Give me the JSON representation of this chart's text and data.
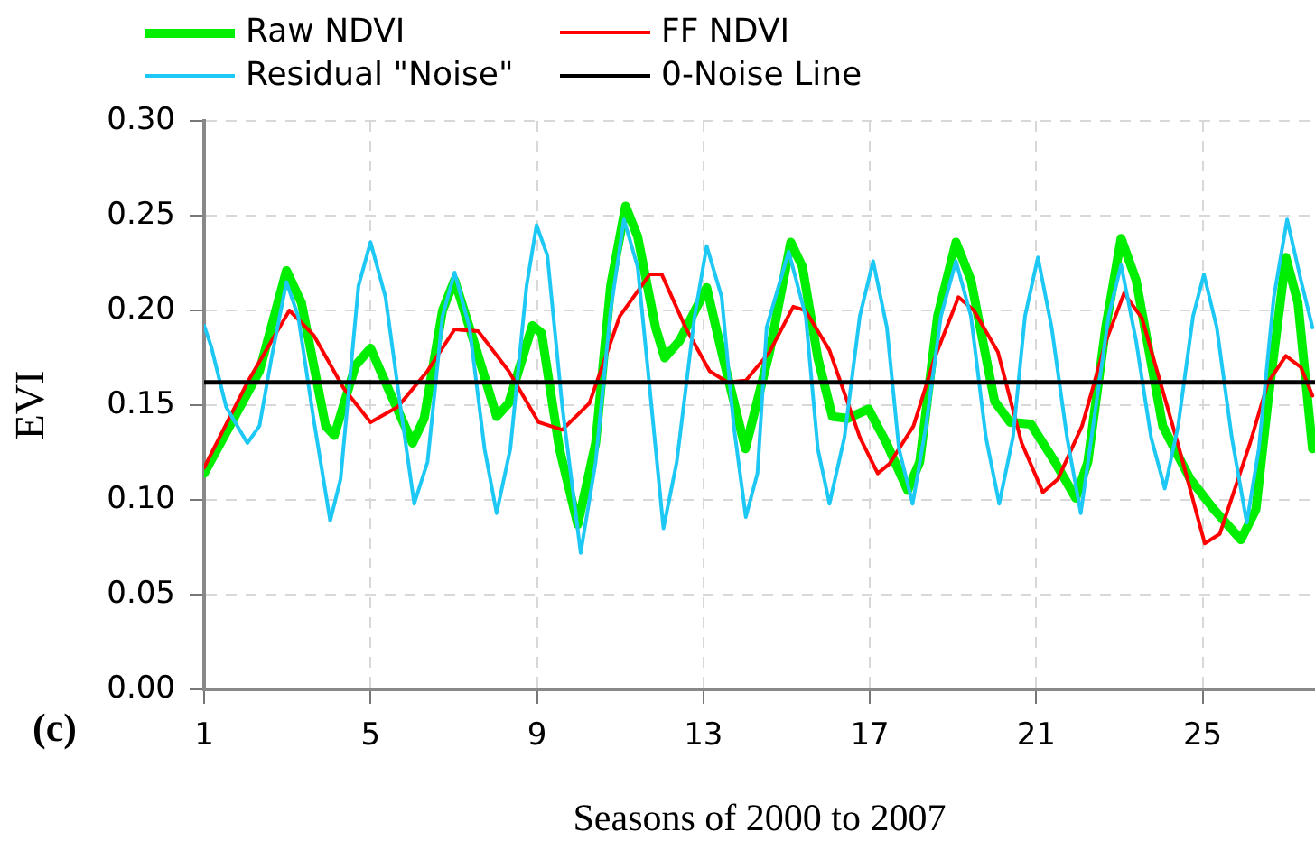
{
  "chart_data": {
    "type": "line",
    "xlabel": "Seasons of 2000 to 2007",
    "ylabel": "EVI",
    "annotations": [
      "(c)"
    ],
    "xlim": [
      1,
      27.7
    ],
    "xticks": [
      1,
      5,
      9,
      13,
      17,
      21,
      25
    ],
    "ylim": [
      0,
      0.3
    ],
    "yticks": [
      {
        "value": 0,
        "label": "0.00"
      },
      0.05,
      {
        "value": 0.1,
        "label": "0.10"
      },
      0.15,
      {
        "value": 0.2,
        "label": "0.20"
      },
      0.25,
      {
        "value": 0.3,
        "label": "0.30"
      }
    ],
    "grid": true,
    "legend": "top",
    "marker": "none",
    "line_style": "solid",
    "series": [
      {
        "name": "Raw NDVI",
        "color": "#00ee00",
        "x": [
          1,
          2.33,
          2.98,
          3.34,
          3.92,
          4.13,
          4.64,
          5.0,
          5.5,
          6.01,
          6.29,
          6.73,
          7.02,
          7.52,
          8.03,
          8.32,
          8.89,
          9.11,
          9.54,
          9.98,
          10.41,
          10.77,
          11.13,
          11.42,
          11.85,
          12.07,
          12.43,
          13.08,
          13.44,
          14.01,
          14.59,
          15.1,
          15.38,
          15.75,
          16.1,
          16.47,
          16.97,
          17.4,
          17.91,
          18.2,
          18.63,
          19.07,
          19.43,
          20.0,
          20.37,
          20.87,
          21.45,
          21.95,
          22.24,
          22.67,
          23.04,
          23.4,
          24.04,
          24.7,
          25.27,
          25.92,
          26.28,
          26.57,
          27.0,
          27.29,
          27.64
        ],
        "values": [
          0.114,
          0.168,
          0.221,
          0.204,
          0.139,
          0.134,
          0.171,
          0.18,
          0.155,
          0.13,
          0.143,
          0.2,
          0.216,
          0.181,
          0.144,
          0.151,
          0.192,
          0.188,
          0.127,
          0.087,
          0.13,
          0.213,
          0.255,
          0.239,
          0.191,
          0.175,
          0.184,
          0.212,
          0.178,
          0.127,
          0.178,
          0.236,
          0.223,
          0.175,
          0.144,
          0.143,
          0.148,
          0.13,
          0.105,
          0.12,
          0.197,
          0.236,
          0.216,
          0.152,
          0.141,
          0.14,
          0.12,
          0.101,
          0.12,
          0.191,
          0.238,
          0.216,
          0.139,
          0.111,
          0.095,
          0.079,
          0.095,
          0.152,
          0.228,
          0.204,
          0.127
        ]
      },
      {
        "name": "FF NDVI",
        "color": "#ff0000",
        "x": [
          1,
          2.04,
          3.05,
          3.63,
          4.35,
          5.0,
          5.65,
          6.37,
          7.02,
          7.59,
          8.32,
          9.04,
          9.61,
          10.26,
          10.99,
          11.71,
          12.0,
          12.57,
          13.15,
          13.58,
          14.02,
          14.59,
          15.16,
          15.45,
          16.03,
          16.76,
          17.19,
          17.47,
          18.05,
          18.56,
          19.13,
          19.5,
          20.08,
          20.65,
          21.16,
          21.52,
          22.1,
          22.68,
          23.11,
          23.54,
          24.4,
          25.05,
          25.41,
          26.14,
          26.57,
          27.0,
          27.36,
          27.64
        ],
        "values": [
          0.117,
          0.162,
          0.2,
          0.187,
          0.159,
          0.141,
          0.149,
          0.168,
          0.19,
          0.189,
          0.168,
          0.141,
          0.137,
          0.151,
          0.197,
          0.219,
          0.219,
          0.191,
          0.168,
          0.162,
          0.163,
          0.178,
          0.202,
          0.2,
          0.179,
          0.133,
          0.114,
          0.119,
          0.139,
          0.175,
          0.207,
          0.2,
          0.178,
          0.13,
          0.104,
          0.111,
          0.139,
          0.184,
          0.209,
          0.196,
          0.13,
          0.077,
          0.082,
          0.13,
          0.162,
          0.176,
          0.17,
          0.155
        ]
      },
      {
        "name": "Residual \"Noise\"",
        "color": "#1ec8f5",
        "x": [
          1,
          1.17,
          1.53,
          2.04,
          2.33,
          2.62,
          2.98,
          3.26,
          3.63,
          4.03,
          4.28,
          4.71,
          5.0,
          5.36,
          5.72,
          6.05,
          6.37,
          6.73,
          7.02,
          7.38,
          7.74,
          8.03,
          8.36,
          8.75,
          8.99,
          9.25,
          9.61,
          10.05,
          10.41,
          10.77,
          11.09,
          11.42,
          11.71,
          12.04,
          12.36,
          12.79,
          13.08,
          13.44,
          13.73,
          14.02,
          14.3,
          14.52,
          15.05,
          15.46,
          15.75,
          16.03,
          16.39,
          16.76,
          17.08,
          17.41,
          17.7,
          18.03,
          18.35,
          18.71,
          19.07,
          19.43,
          19.79,
          20.11,
          20.44,
          20.73,
          21.04,
          21.37,
          21.74,
          22.07,
          22.45,
          22.74,
          23.04,
          23.4,
          23.76,
          24.09,
          24.41,
          24.77,
          25.03,
          25.34,
          25.7,
          26.06,
          26.35,
          26.71,
          27.03,
          27.36,
          27.64
        ],
        "values": [
          0.192,
          0.181,
          0.149,
          0.13,
          0.139,
          0.175,
          0.215,
          0.197,
          0.143,
          0.089,
          0.111,
          0.213,
          0.236,
          0.207,
          0.149,
          0.098,
          0.12,
          0.197,
          0.22,
          0.191,
          0.127,
          0.093,
          0.127,
          0.213,
          0.245,
          0.229,
          0.149,
          0.072,
          0.12,
          0.2,
          0.248,
          0.223,
          0.159,
          0.085,
          0.12,
          0.197,
          0.234,
          0.207,
          0.139,
          0.091,
          0.114,
          0.191,
          0.231,
          0.197,
          0.127,
          0.098,
          0.133,
          0.197,
          0.226,
          0.191,
          0.127,
          0.098,
          0.139,
          0.197,
          0.226,
          0.197,
          0.133,
          0.098,
          0.133,
          0.197,
          0.228,
          0.191,
          0.133,
          0.093,
          0.152,
          0.197,
          0.224,
          0.184,
          0.133,
          0.106,
          0.139,
          0.197,
          0.219,
          0.191,
          0.133,
          0.088,
          0.127,
          0.207,
          0.248,
          0.216,
          0.191
        ]
      },
      {
        "name": "0-Noise Line",
        "color": "#000000",
        "x": [
          1,
          27.7
        ],
        "values": [
          0.162,
          0.162
        ]
      }
    ]
  }
}
